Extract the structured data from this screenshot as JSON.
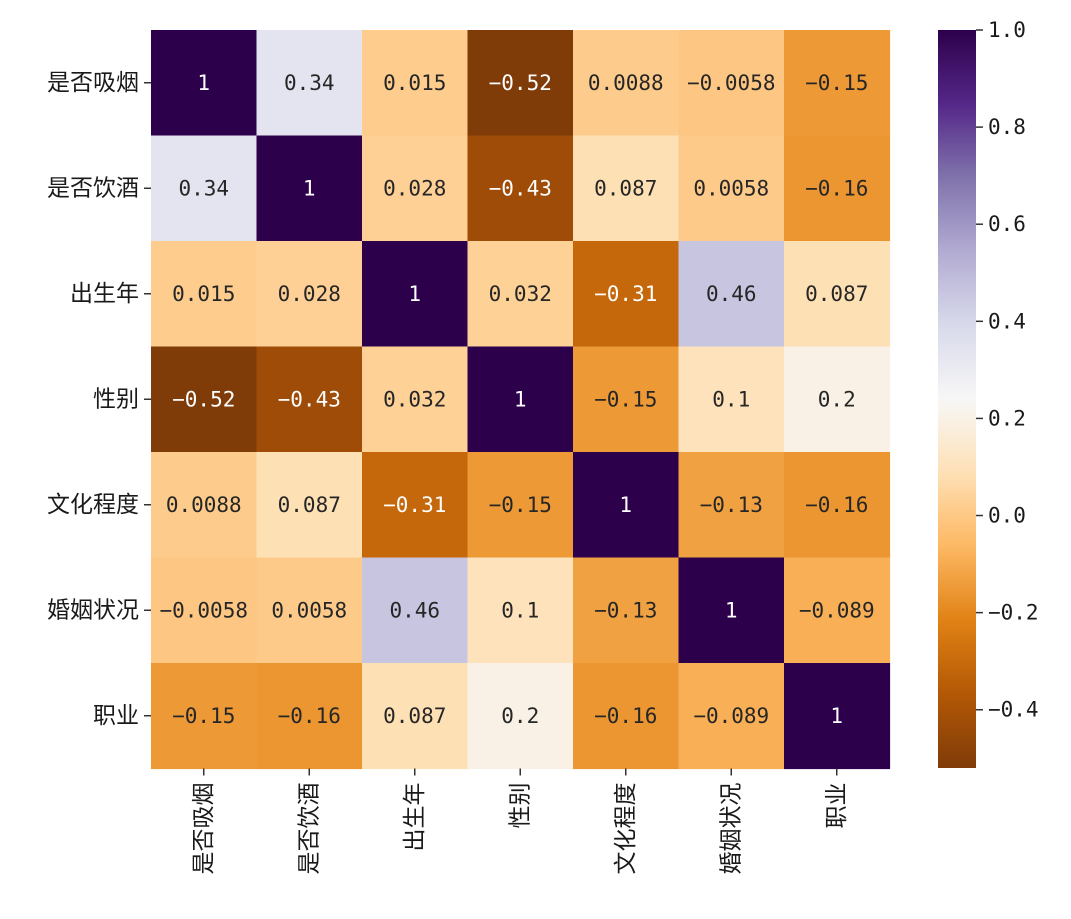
{
  "chart_data": {
    "type": "heatmap",
    "title": "",
    "xlabel": "",
    "ylabel": "",
    "colormap": "PuOr",
    "vmin": -0.52,
    "vmax": 1.0,
    "row_labels": [
      "是否吸烟",
      "是否饮酒",
      "出生年",
      "性别",
      "文化程度",
      "婚姻状况",
      "职业"
    ],
    "col_labels": [
      "是否吸烟",
      "是否饮酒",
      "出生年",
      "性别",
      "文化程度",
      "婚姻状况",
      "职业"
    ],
    "values": [
      [
        1,
        0.34,
        0.015,
        -0.52,
        0.0088,
        -0.0058,
        -0.15
      ],
      [
        0.34,
        1,
        0.028,
        -0.43,
        0.087,
        0.0058,
        -0.16
      ],
      [
        0.015,
        0.028,
        1,
        0.032,
        -0.31,
        0.46,
        0.087
      ],
      [
        -0.52,
        -0.43,
        0.032,
        1,
        -0.15,
        0.1,
        0.2
      ],
      [
        0.0088,
        0.087,
        -0.31,
        -0.15,
        1,
        -0.13,
        -0.16
      ],
      [
        -0.0058,
        0.0058,
        0.46,
        0.1,
        -0.13,
        1,
        -0.089
      ],
      [
        -0.15,
        -0.16,
        0.087,
        0.2,
        -0.16,
        -0.089,
        1
      ]
    ],
    "annotations": [
      [
        "1",
        "0.34",
        "0.015",
        "−0.52",
        "0.0088",
        "−0.0058",
        "−0.15"
      ],
      [
        "0.34",
        "1",
        "0.028",
        "−0.43",
        "0.087",
        "0.0058",
        "−0.16"
      ],
      [
        "0.015",
        "0.028",
        "1",
        "0.032",
        "−0.31",
        "0.46",
        "0.087"
      ],
      [
        "−0.52",
        "−0.43",
        "0.032",
        "1",
        "−0.15",
        "0.1",
        "0.2"
      ],
      [
        "0.0088",
        "0.087",
        "−0.31",
        "−0.15",
        "1",
        "−0.13",
        "−0.16"
      ],
      [
        "−0.0058",
        "0.0058",
        "0.46",
        "0.1",
        "−0.13",
        "1",
        "−0.089"
      ],
      [
        "−0.15",
        "−0.16",
        "0.087",
        "0.2",
        "−0.16",
        "−0.089",
        "1"
      ]
    ],
    "colorbar": {
      "ticks": [
        1.0,
        0.8,
        0.6,
        0.4,
        0.2,
        0.0,
        -0.2,
        -0.4
      ],
      "tick_labels": [
        "1.0",
        "0.8",
        "0.6",
        "0.4",
        "0.2",
        "0.0",
        "−0.2",
        "−0.4"
      ]
    }
  }
}
